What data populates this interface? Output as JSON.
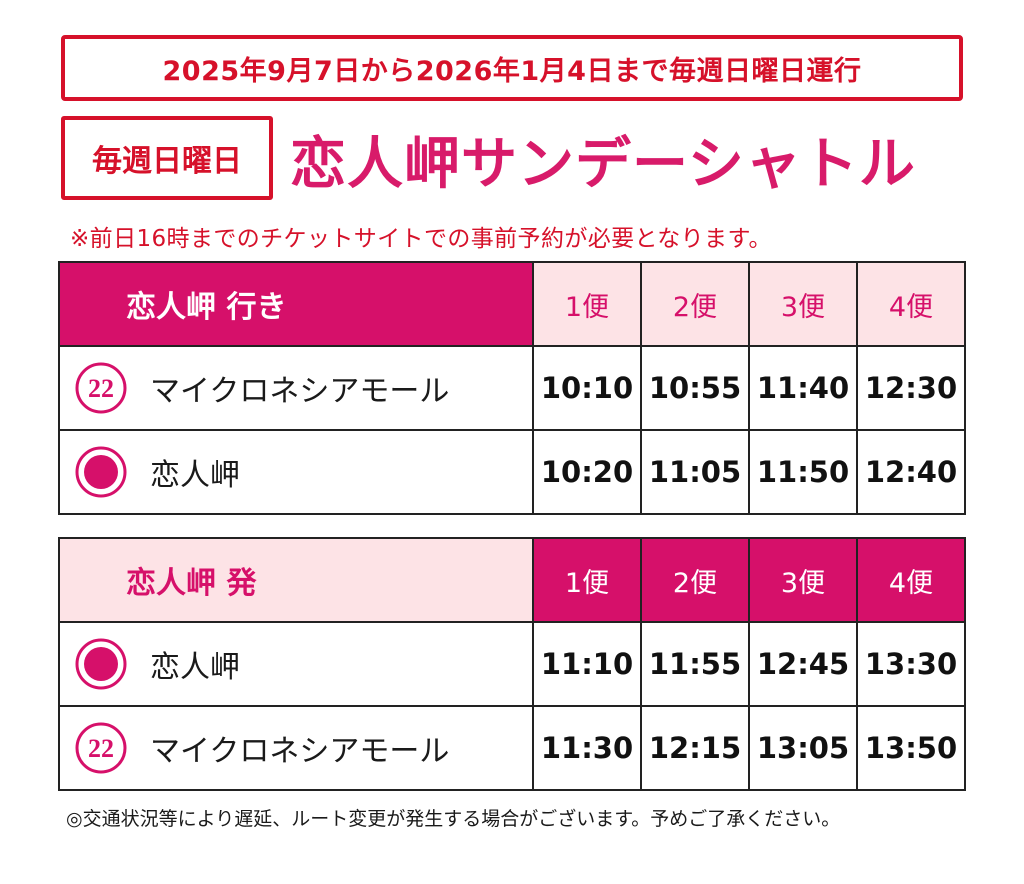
{
  "period_banner": "2025年9月7日から2026年1月4日まで毎週日曜日運行",
  "badge": "毎週日曜日",
  "title": "恋人岬サンデーシャトル",
  "notice": "※前日16時までのチケットサイトでの事前予約が必要となります。",
  "colors": {
    "accent_red": "#d6112a",
    "accent_pink": "#d6106a",
    "light_pink": "#fde3e6"
  },
  "outbound": {
    "heading": "恋人岬 行き",
    "services": [
      "1便",
      "2便",
      "3便",
      "4便"
    ],
    "rows": [
      {
        "icon": "stop-number-22-icon",
        "icon_label": "22",
        "stop": "マイクロネシアモール",
        "times": [
          "10:10",
          "10:55",
          "11:40",
          "12:30"
        ]
      },
      {
        "icon": "stop-dot-icon",
        "stop": "恋人岬",
        "times": [
          "10:20",
          "11:05",
          "11:50",
          "12:40"
        ]
      }
    ]
  },
  "inbound": {
    "heading": "恋人岬 発",
    "services": [
      "1便",
      "2便",
      "3便",
      "4便"
    ],
    "rows": [
      {
        "icon": "stop-dot-icon",
        "stop": "恋人岬",
        "times": [
          "11:10",
          "11:55",
          "12:45",
          "13:30"
        ]
      },
      {
        "icon": "stop-number-22-icon",
        "icon_label": "22",
        "stop": "マイクロネシアモール",
        "times": [
          "11:30",
          "12:15",
          "13:05",
          "13:50"
        ]
      }
    ]
  },
  "footnote": "◎交通状況等により遅延、ルート変更が発生する場合がございます。予めご了承ください。"
}
